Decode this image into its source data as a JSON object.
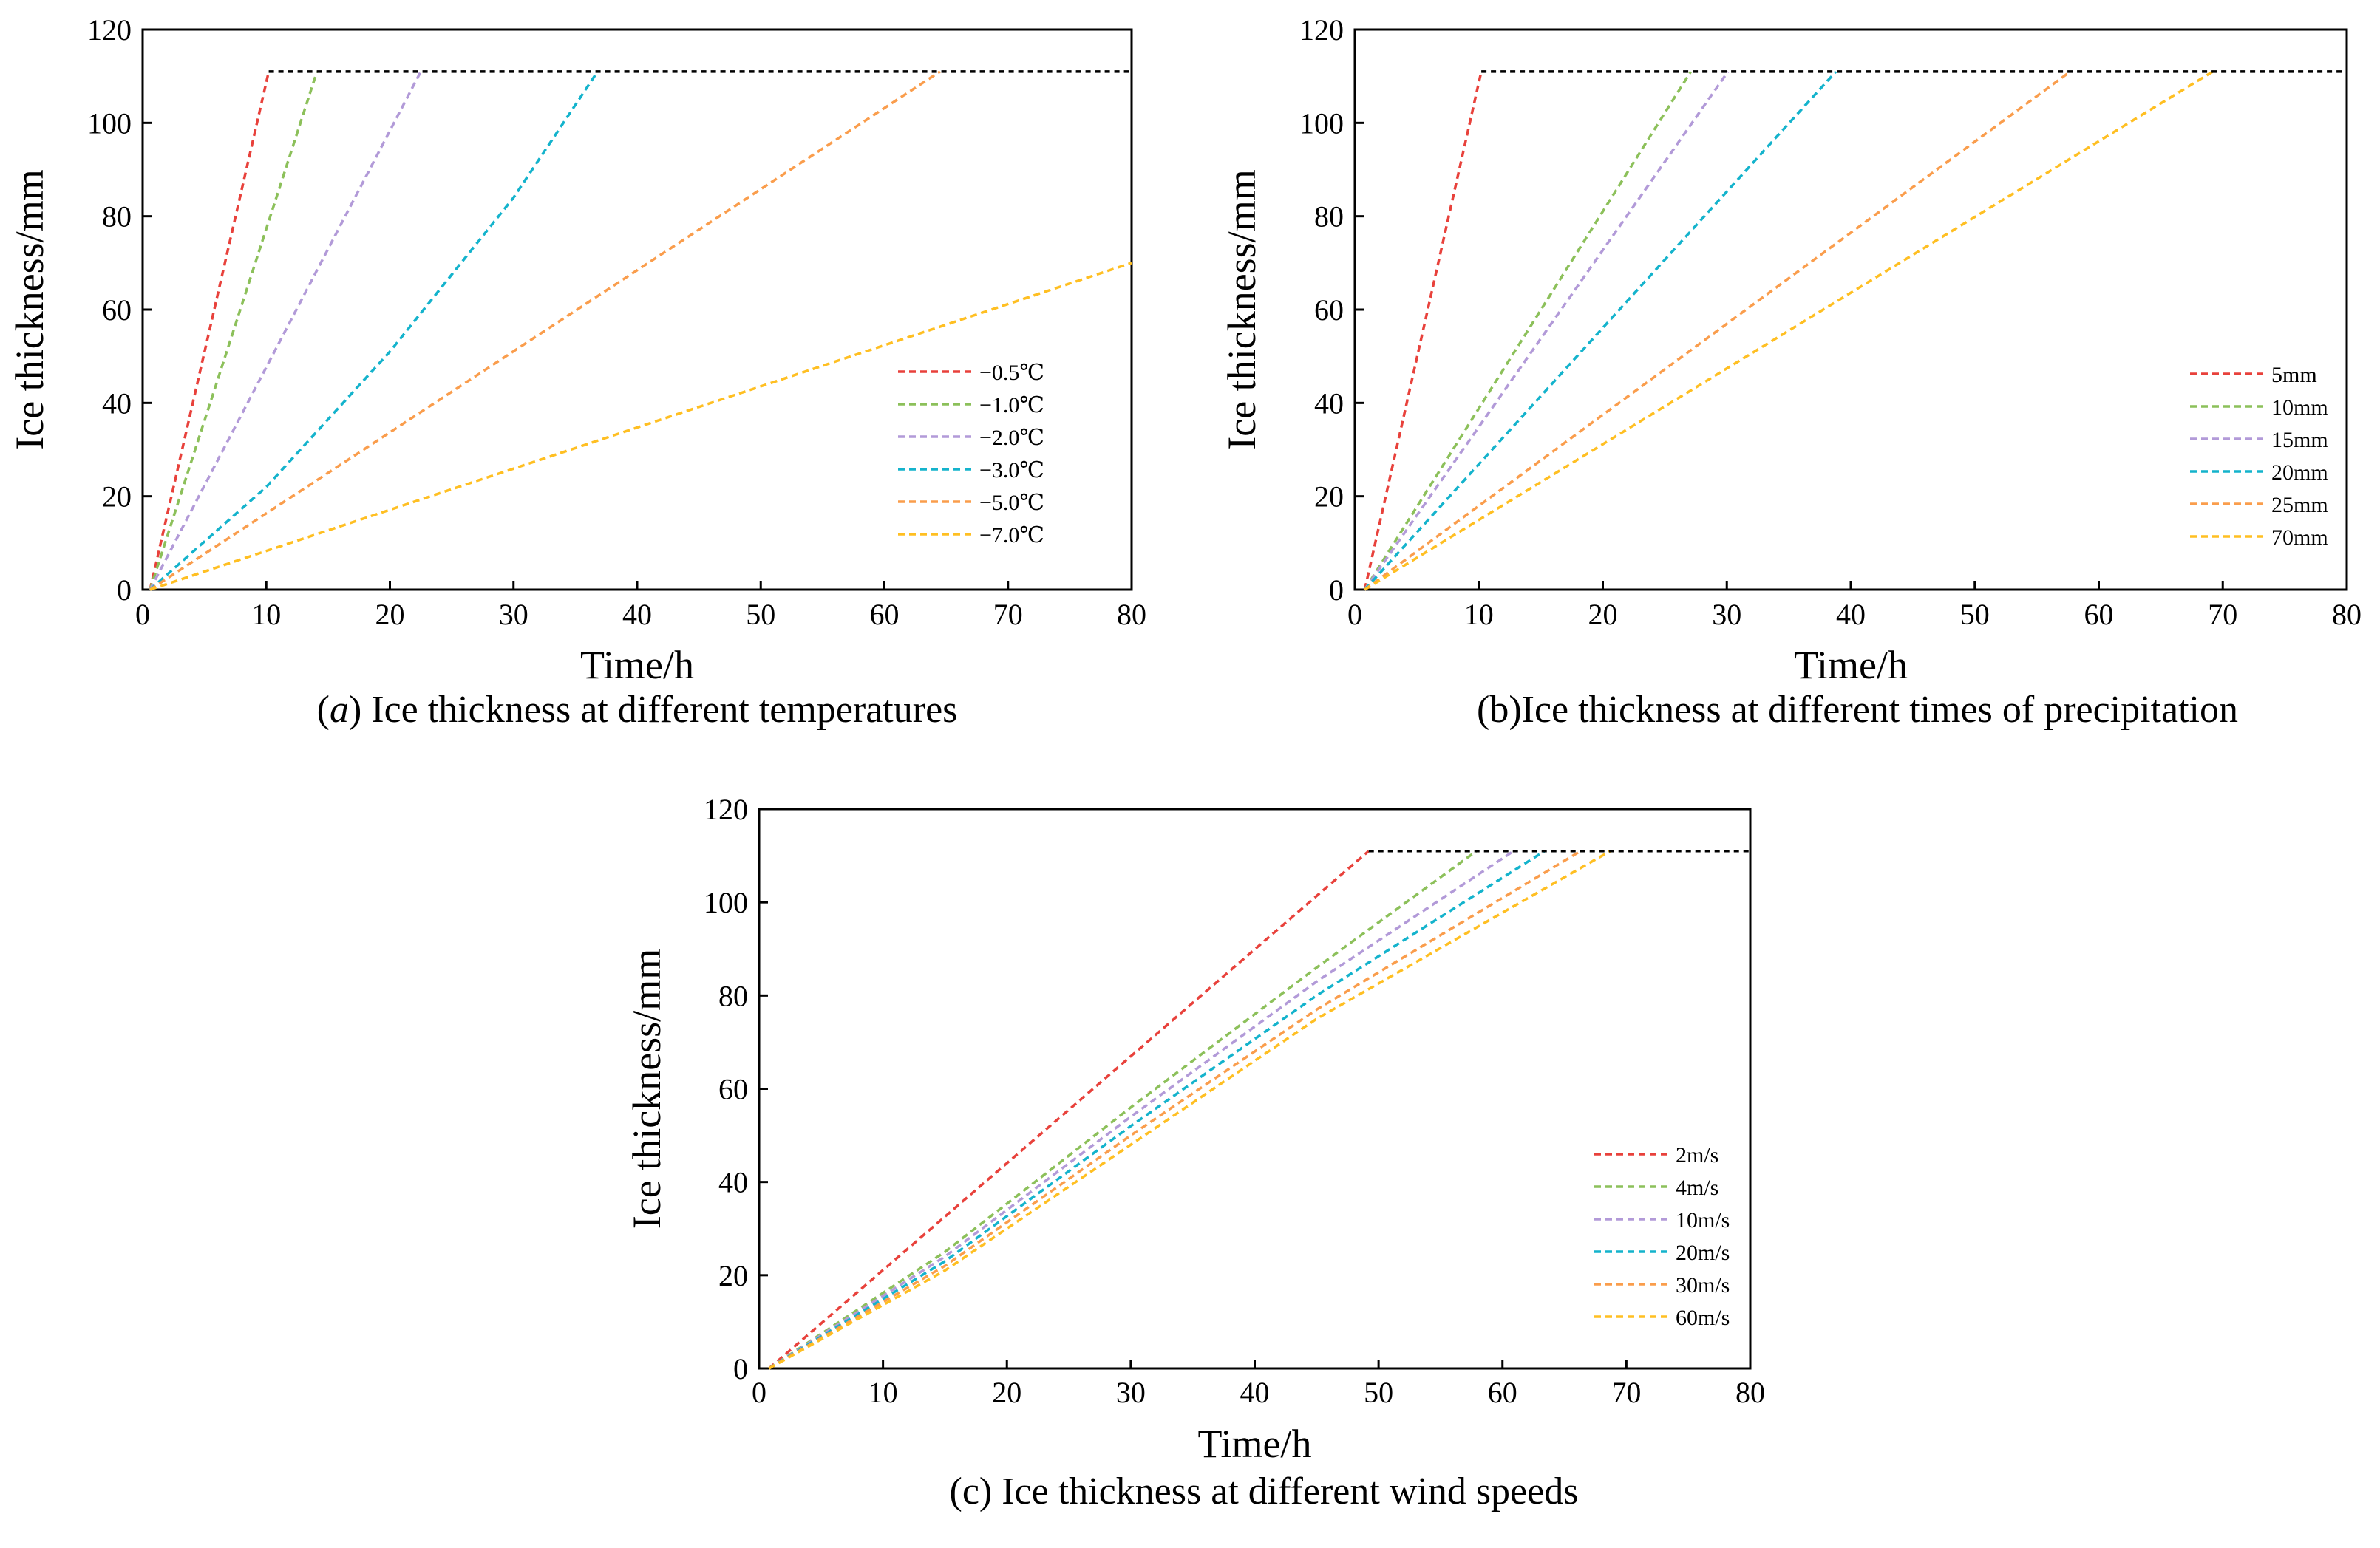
{
  "colors": {
    "series": [
      "#e8413b",
      "#8cc05a",
      "#b29ad8",
      "#14b3cc",
      "#fa9d4c",
      "#ffbf22"
    ],
    "plateau": "#000000"
  },
  "chart_data": [
    {
      "type": "line",
      "caption_prefix": "(",
      "caption_letter": "a",
      "caption_text": ") Ice thickness at different temperatures",
      "xlabel": "Time/h",
      "ylabel": "Ice thickness/mm",
      "xlim": [
        0,
        80
      ],
      "ylim": [
        0,
        120
      ],
      "xticks": [
        0,
        10,
        20,
        30,
        40,
        50,
        60,
        70,
        80
      ],
      "yticks": [
        0,
        20,
        40,
        60,
        80,
        100,
        120
      ],
      "grid": false,
      "legend_position": "lower-right",
      "plateau": {
        "y": 111,
        "x_end": 80
      },
      "series": [
        {
          "name": "−0.5℃",
          "points": [
            [
              0.6,
              0
            ],
            [
              10.2,
              111
            ]
          ]
        },
        {
          "name": "−1.0℃",
          "points": [
            [
              0.6,
              0
            ],
            [
              14.1,
              111
            ]
          ]
        },
        {
          "name": "−2.0℃",
          "points": [
            [
              0.6,
              0
            ],
            [
              22.5,
              111
            ]
          ]
        },
        {
          "name": "−3.0℃",
          "points": [
            [
              0.6,
              0
            ],
            [
              10,
              22
            ],
            [
              20,
              51
            ],
            [
              30,
              84
            ],
            [
              36.8,
              111
            ]
          ]
        },
        {
          "name": "−5.0℃",
          "points": [
            [
              0.6,
              0
            ],
            [
              64.5,
              111
            ]
          ]
        },
        {
          "name": "−7.0℃",
          "points": [
            [
              0.6,
              0
            ],
            [
              80,
              70
            ]
          ]
        }
      ]
    },
    {
      "type": "line",
      "caption_prefix": "",
      "caption_letter": "",
      "caption_text": "(b)Ice thickness at different times of precipitation",
      "xlabel": "Time/h",
      "ylabel": "Ice thickness/mm",
      "xlim": [
        0,
        80
      ],
      "ylim": [
        0,
        120
      ],
      "xticks": [
        0,
        10,
        20,
        30,
        40,
        50,
        60,
        70,
        80
      ],
      "yticks": [
        0,
        20,
        40,
        60,
        80,
        100,
        120
      ],
      "grid": false,
      "legend_position": "lower-right",
      "plateau": {
        "y": 111,
        "x_end": 80
      },
      "series": [
        {
          "name": "5mm",
          "points": [
            [
              0.8,
              0
            ],
            [
              10.2,
              111
            ]
          ]
        },
        {
          "name": "10mm",
          "points": [
            [
              0.8,
              0
            ],
            [
              27.1,
              111
            ]
          ]
        },
        {
          "name": "15mm",
          "points": [
            [
              0.8,
              0
            ],
            [
              30.1,
              111
            ]
          ]
        },
        {
          "name": "20mm",
          "points": [
            [
              0.8,
              0
            ],
            [
              38.8,
              111
            ]
          ]
        },
        {
          "name": "25mm",
          "points": [
            [
              0.8,
              0
            ],
            [
              57.7,
              111
            ]
          ]
        },
        {
          "name": "70mm",
          "points": [
            [
              0.8,
              0
            ],
            [
              69.2,
              111
            ]
          ]
        }
      ]
    },
    {
      "type": "line",
      "caption_prefix": "",
      "caption_letter": "",
      "caption_text": "(c) Ice thickness at different wind speeds",
      "xlabel": "Time/h",
      "ylabel": "Ice thickness/mm",
      "xlim": [
        0,
        80
      ],
      "ylim": [
        0,
        120
      ],
      "xticks": [
        0,
        10,
        20,
        30,
        40,
        50,
        60,
        70,
        80
      ],
      "yticks": [
        0,
        20,
        40,
        60,
        80,
        100,
        120
      ],
      "grid": false,
      "legend_position": "lower-right",
      "plateau": {
        "y": 111,
        "x_end": 80
      },
      "series": [
        {
          "name": "2m/s",
          "points": [
            [
              0.8,
              0
            ],
            [
              49.2,
              111
            ]
          ]
        },
        {
          "name": "4m/s",
          "points": [
            [
              0.8,
              0
            ],
            [
              15,
              25
            ],
            [
              30,
              56
            ],
            [
              45,
              86
            ],
            [
              57.9,
              111
            ]
          ]
        },
        {
          "name": "10m/s",
          "points": [
            [
              0.8,
              0
            ],
            [
              15,
              24
            ],
            [
              30,
              54
            ],
            [
              45,
              83
            ],
            [
              60.9,
              111
            ]
          ]
        },
        {
          "name": "20m/s",
          "points": [
            [
              0.8,
              0
            ],
            [
              15,
              23
            ],
            [
              30,
              52
            ],
            [
              45,
              80
            ],
            [
              63.4,
              111
            ]
          ]
        },
        {
          "name": "30m/s",
          "points": [
            [
              0.8,
              0
            ],
            [
              15,
              22
            ],
            [
              30,
              50
            ],
            [
              45,
              77
            ],
            [
              66.3,
              111
            ]
          ]
        },
        {
          "name": "60m/s",
          "points": [
            [
              0.8,
              0
            ],
            [
              15,
              21
            ],
            [
              30,
              48
            ],
            [
              45,
              75
            ],
            [
              68.7,
              111
            ]
          ]
        }
      ]
    }
  ]
}
